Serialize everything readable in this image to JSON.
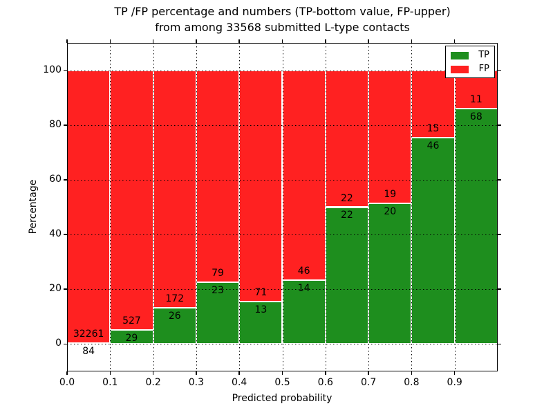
{
  "title": {
    "line1": "TP /FP percentage and numbers (TP-bottom value, FP-upper)",
    "line2": "from among 33568 submitted L-type contacts"
  },
  "chart_data": {
    "type": "bar",
    "subtype": "stacked-percentage-histogram",
    "title": "TP /FP percentage and numbers (TP-bottom value, FP-upper) from among 33568 submitted L-type contacts",
    "xlabel": "Predicted probability",
    "ylabel": "Percentage",
    "total_contacts": 33568,
    "xlim": [
      0.0,
      1.0
    ],
    "ylim": [
      -10,
      110
    ],
    "bin_width": 0.1,
    "bin_starts": [
      0.0,
      0.1,
      0.2,
      0.3,
      0.4,
      0.5,
      0.6,
      0.7,
      0.8,
      0.9
    ],
    "x_tick_values": [
      0.0,
      0.1,
      0.2,
      0.3,
      0.4,
      0.5,
      0.6,
      0.7,
      0.8,
      0.9
    ],
    "x_tick_labels": [
      "0.0",
      "0.1",
      "0.2",
      "0.3",
      "0.4",
      "0.5",
      "0.6",
      "0.7",
      "0.8",
      "0.9"
    ],
    "y_tick_values": [
      0,
      20,
      40,
      60,
      80,
      100
    ],
    "y_tick_labels": [
      "0",
      "20",
      "40",
      "60",
      "80",
      "100"
    ],
    "grid": "dotted black, both axes, drawn above bars",
    "series": [
      {
        "name": "TP",
        "color": "#1e8e1e",
        "position": "bottom",
        "counts": [
          84,
          29,
          26,
          23,
          13,
          14,
          22,
          20,
          46,
          68
        ]
      },
      {
        "name": "FP",
        "color": "#ff2121",
        "position": "top",
        "counts": [
          32261,
          527,
          172,
          79,
          71,
          46,
          22,
          19,
          15,
          11
        ]
      }
    ],
    "tp_percent_per_bin": [
      0.26,
      5.22,
      13.13,
      22.55,
      15.48,
      23.33,
      50.0,
      51.28,
      75.41,
      86.08
    ],
    "legend": {
      "position": "upper right",
      "entries": [
        {
          "label": "TP",
          "color": "#1e8e1e"
        },
        {
          "label": "FP",
          "color": "#ff2121"
        }
      ]
    }
  }
}
